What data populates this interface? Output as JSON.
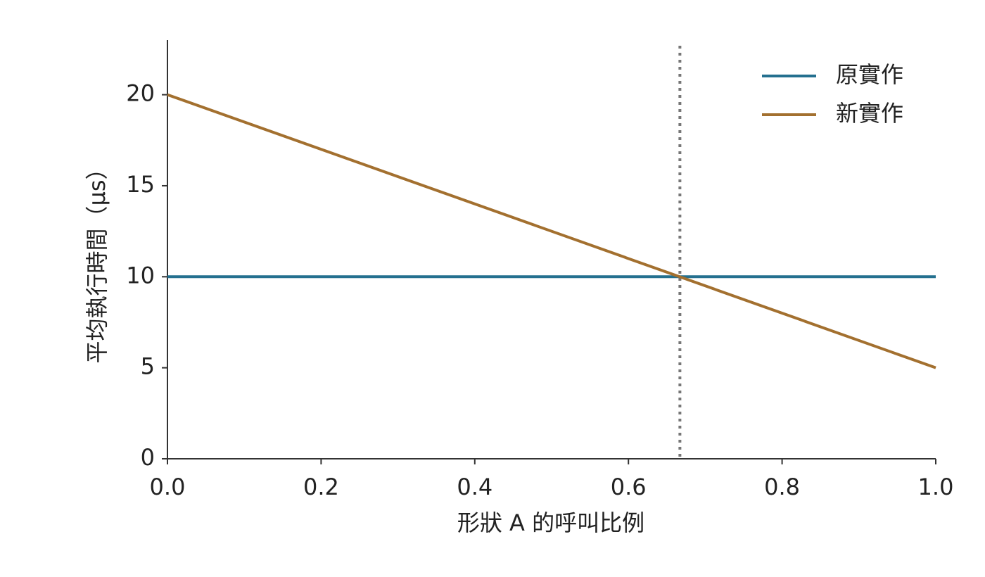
{
  "chart_data": {
    "type": "line",
    "x_label": "形狀 A 的呼叫比例",
    "y_label": "平均執行時間（μs）",
    "x": [
      0,
      1
    ],
    "series": [
      {
        "name": "原實作",
        "color": "#24708f",
        "values": [
          10,
          10
        ]
      },
      {
        "name": "新實作",
        "color": "#a3702f",
        "values": [
          20,
          5
        ]
      }
    ],
    "xlim": [
      0,
      1
    ],
    "xticks": [
      {
        "value": 0,
        "label": "0.0"
      },
      0.2,
      0.4,
      0.6,
      0.8,
      {
        "value": 1,
        "label": "1.0"
      }
    ],
    "ylim": [
      0,
      23
    ],
    "yticks": [
      0,
      5,
      10,
      15,
      20
    ],
    "reference_x": 0.667,
    "reference_color": "#777777",
    "legend": "upper-right",
    "grid": false
  }
}
